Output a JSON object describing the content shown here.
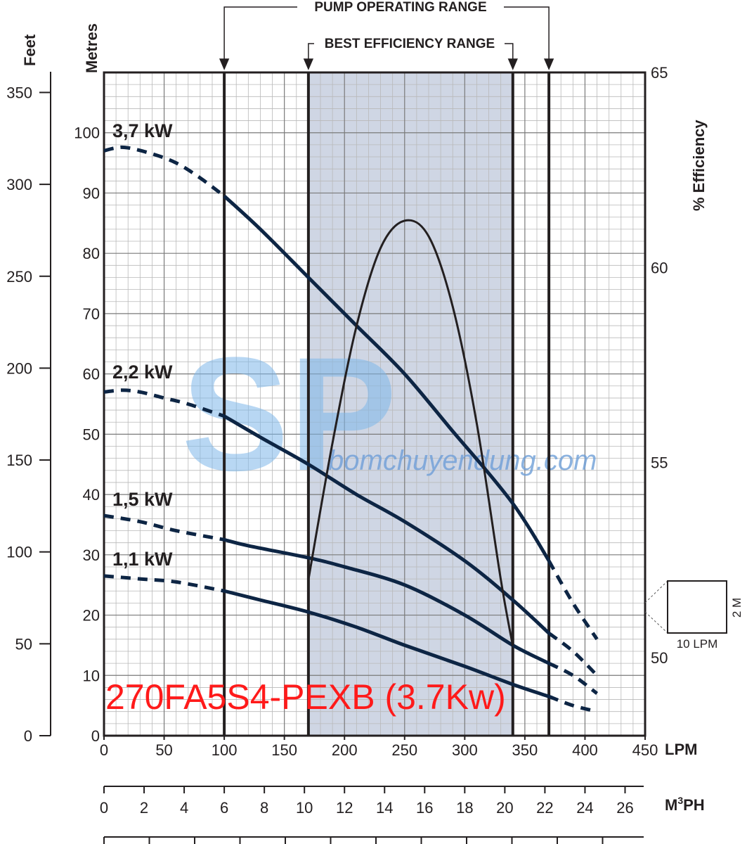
{
  "chart_data": {
    "type": "line",
    "model_label": "270FA5S4-PEXB (3.7Kw)",
    "watermark": {
      "logo": "SP",
      "text": "bomchuyendung.com"
    },
    "x_axis": {
      "unit": "LPM",
      "range": [
        0,
        450
      ],
      "ticks": [
        "0",
        "50",
        "100",
        "150",
        "200",
        "250",
        "300",
        "350",
        "400",
        "450"
      ]
    },
    "m3ph_axis": {
      "unit": "M3PH",
      "unit_main": "M",
      "unit_sup": "3",
      "unit_rest": "PH",
      "ticks": [
        "0",
        "2",
        "4",
        "6",
        "8",
        "10",
        "12",
        "14",
        "16",
        "18",
        "20",
        "22",
        "24",
        "26"
      ]
    },
    "metres_axis": {
      "title": "Metres",
      "range": [
        0,
        110
      ],
      "ticks": [
        "0",
        "10",
        "20",
        "30",
        "40",
        "50",
        "60",
        "70",
        "80",
        "90",
        "100"
      ]
    },
    "feet_axis": {
      "title": "Feet",
      "ticks": [
        "0",
        "50",
        "100",
        "150",
        "200",
        "250",
        "300",
        "350"
      ]
    },
    "efficiency_axis": {
      "title": "% Efficiency",
      "range": [
        48,
        65
      ],
      "ticks": [
        "50",
        "55",
        "60",
        "65"
      ]
    },
    "pump_operating_range": {
      "label": "PUMP OPERATING RANGE",
      "from": 100,
      "to": 370
    },
    "best_efficiency_range": {
      "label": "BEST EFFICIENCY RANGE",
      "from": 170,
      "to": 340
    },
    "scale_box": {
      "width_label": "10 LPM",
      "height_label": "2 M"
    },
    "series": [
      {
        "name": "3,7 kW",
        "points": [
          [
            0,
            97
          ],
          [
            10,
            97.5
          ],
          [
            20,
            97.5
          ],
          [
            40,
            96.5
          ],
          [
            60,
            95
          ],
          [
            80,
            92.5
          ],
          [
            100,
            89.5
          ],
          [
            130,
            84
          ],
          [
            170,
            76
          ],
          [
            210,
            68
          ],
          [
            250,
            60
          ],
          [
            290,
            50.5
          ],
          [
            320,
            43.5
          ],
          [
            340,
            38.5
          ],
          [
            355,
            34
          ],
          [
            370,
            29
          ],
          [
            390,
            22
          ],
          [
            410,
            16
          ]
        ]
      },
      {
        "name": "2,2 kW",
        "points": [
          [
            0,
            57
          ],
          [
            15,
            57.3
          ],
          [
            30,
            57
          ],
          [
            50,
            56
          ],
          [
            70,
            55
          ],
          [
            100,
            53
          ],
          [
            130,
            49.5
          ],
          [
            170,
            45
          ],
          [
            210,
            40
          ],
          [
            250,
            35.5
          ],
          [
            300,
            29
          ],
          [
            340,
            22.5
          ],
          [
            370,
            17
          ],
          [
            390,
            14
          ],
          [
            410,
            10
          ]
        ]
      },
      {
        "name": "1,5 kW",
        "points": [
          [
            0,
            36.5
          ],
          [
            30,
            35.5
          ],
          [
            60,
            34
          ],
          [
            100,
            32.5
          ],
          [
            120,
            31.5
          ],
          [
            170,
            29.5
          ],
          [
            200,
            28
          ],
          [
            250,
            25
          ],
          [
            300,
            20
          ],
          [
            340,
            15
          ],
          [
            370,
            12
          ],
          [
            390,
            10
          ],
          [
            410,
            7
          ]
        ]
      },
      {
        "name": "1,1 kW",
        "points": [
          [
            0,
            26.5
          ],
          [
            30,
            26
          ],
          [
            60,
            25.5
          ],
          [
            100,
            24
          ],
          [
            130,
            22.5
          ],
          [
            170,
            20.5
          ],
          [
            210,
            18
          ],
          [
            250,
            15
          ],
          [
            300,
            11.5
          ],
          [
            340,
            8.5
          ],
          [
            370,
            6.5
          ],
          [
            390,
            5
          ],
          [
            410,
            4
          ]
        ]
      }
    ],
    "efficiency_curve": {
      "points": [
        [
          170,
          52
        ],
        [
          190,
          55.5
        ],
        [
          210,
          58.5
        ],
        [
          230,
          60.5
        ],
        [
          250,
          61.2
        ],
        [
          270,
          60.8
        ],
        [
          290,
          59
        ],
        [
          310,
          56
        ],
        [
          330,
          52
        ],
        [
          340,
          50.3
        ]
      ]
    }
  }
}
